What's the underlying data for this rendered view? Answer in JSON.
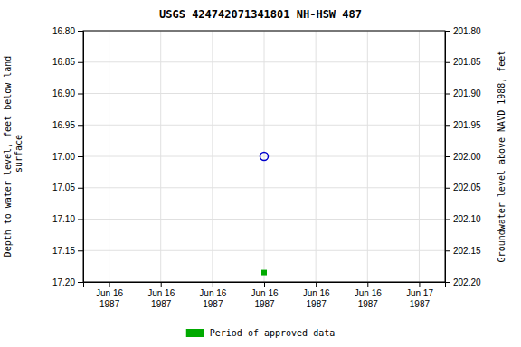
{
  "chart_data": {
    "type": "scatter",
    "title": "USGS 424742071341801 NH-HSW  487",
    "y_label": "Depth to water level, feet below land\n surface",
    "y2_label": "Groundwater level above NAVD 1988, feet",
    "categories": [
      "Jun 16\n1987",
      "Jun 16\n1987",
      "Jun 16\n1987",
      "Jun 16\n1987",
      "Jun 16\n1987",
      "Jun 16\n1987",
      "Jun 17\n1987"
    ],
    "series": [
      {
        "color": "#0000cc",
        "marker": "open-circle",
        "values": [
          null,
          null,
          null,
          17.0,
          null,
          null,
          null
        ]
      },
      {
        "name": "Period of approved data",
        "color": "#00aa00",
        "marker": "square",
        "values": [
          null,
          null,
          null,
          17.185,
          null,
          null,
          null
        ]
      }
    ],
    "ylim": [
      17.2,
      16.8
    ],
    "yticks": [
      {
        "value": 16.8,
        "label": "16.80"
      },
      16.85,
      {
        "value": 16.9,
        "label": "16.90"
      },
      16.95,
      {
        "value": 17,
        "label": "17.00"
      },
      17.05,
      {
        "value": 17.1,
        "label": "17.10"
      },
      17.15,
      {
        "value": 17.2,
        "label": "17.20"
      }
    ],
    "y2lim": [
      202.2,
      201.8
    ],
    "y2ticks": [
      {
        "value": 202.2,
        "label": "202.20"
      },
      202.15,
      {
        "value": 202.1,
        "label": "202.10"
      },
      202.05,
      {
        "value": 202,
        "label": "202.00"
      },
      201.95,
      {
        "value": 201.9,
        "label": "201.90"
      },
      201.85,
      {
        "value": 201.8,
        "label": "201.80"
      }
    ],
    "grid": true,
    "legend": "bottom"
  }
}
